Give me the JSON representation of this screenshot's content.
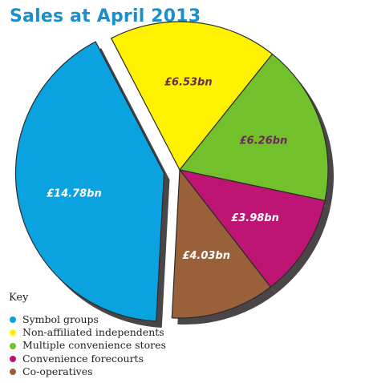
{
  "title": "Sales at April 2013",
  "chart_data": {
    "type": "pie",
    "title": "Sales at April 2013",
    "unit": "£bn",
    "slices": [
      {
        "name": "Symbol groups",
        "value": 14.78,
        "label": "£14.78bn",
        "color": "#0aa3e0",
        "label_color": "#ffffff",
        "exploded": true
      },
      {
        "name": "Non-affiliated independents",
        "value": 6.53,
        "label": "£6.53bn",
        "color": "#fff200",
        "label_color": "#6b2a55",
        "exploded": false
      },
      {
        "name": "Multiple convenience stores",
        "value": 6.26,
        "label": "£6.26bn",
        "color": "#72c02c",
        "label_color": "#6b2a55",
        "exploded": false
      },
      {
        "name": "Convenience forecourts",
        "value": 3.98,
        "label": "£3.98bn",
        "color": "#be1473",
        "label_color": "#ffffff",
        "exploded": false
      },
      {
        "name": "Co-operatives",
        "value": 4.03,
        "label": "£4.03bn",
        "color": "#99603a",
        "label_color": "#ffffff",
        "exploded": false
      }
    ],
    "legend": {
      "title": "Key",
      "placement": "bottom-left"
    }
  }
}
